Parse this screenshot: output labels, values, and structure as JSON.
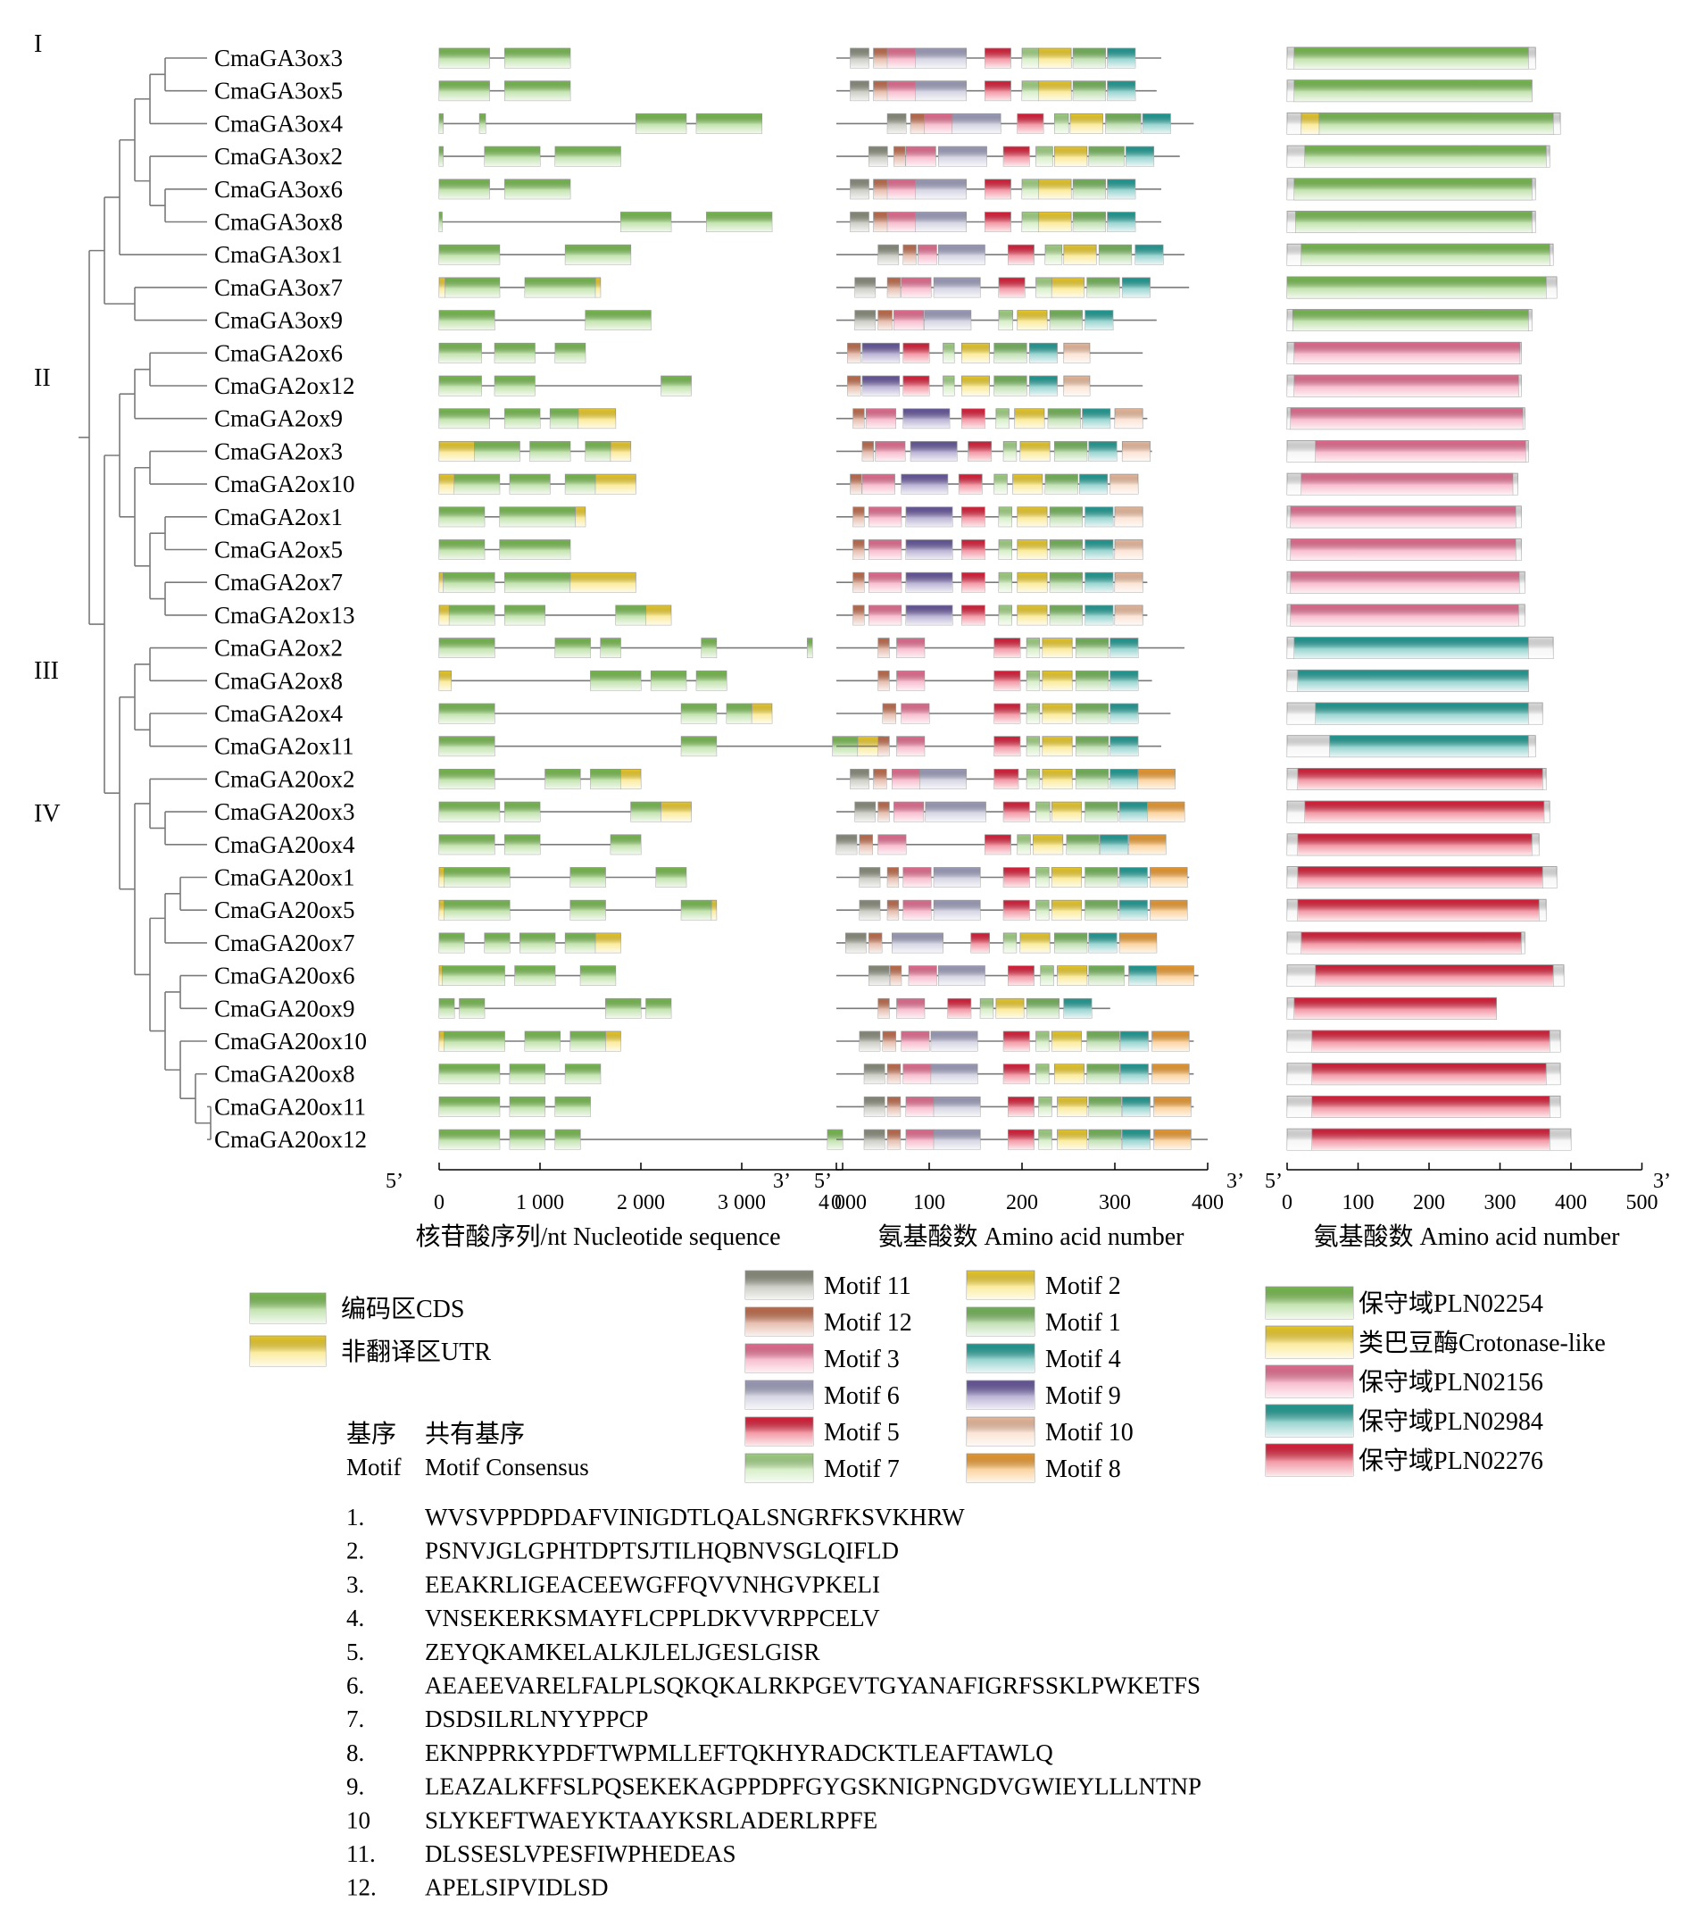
{
  "clade_labels": [
    "I",
    "II",
    "III",
    "IV"
  ],
  "genes": [
    "CmaGA3ox3",
    "CmaGA3ox5",
    "CmaGA3ox4",
    "CmaGA3ox2",
    "CmaGA3ox6",
    "CmaGA3ox8",
    "CmaGA3ox1",
    "CmaGA3ox7",
    "CmaGA3ox9",
    "CmaGA2ox6",
    "CmaGA2ox12",
    "CmaGA2ox9",
    "CmaGA2ox3",
    "CmaGA2ox10",
    "CmaGA2ox1",
    "CmaGA2ox5",
    "CmaGA2ox7",
    "CmaGA2ox13",
    "CmaGA2ox2",
    "CmaGA2ox8",
    "CmaGA2ox4",
    "CmaGA2ox11",
    "CmaGA20ox2",
    "CmaGA20ox3",
    "CmaGA20ox4",
    "CmaGA20ox1",
    "CmaGA20ox5",
    "CmaGA20ox7",
    "CmaGA20ox6",
    "CmaGA20ox9",
    "CmaGA20ox10",
    "CmaGA20ox8",
    "CmaGA20ox11",
    "CmaGA20ox12"
  ],
  "gene_lengths_nt": [
    1300,
    1300,
    3200,
    1800,
    1300,
    3300,
    1900,
    1600,
    2100,
    1450,
    2500,
    1750,
    1900,
    1950,
    1450,
    1300,
    1950,
    2300,
    3700,
    2850,
    3300,
    4400,
    2000,
    2500,
    2000,
    2450,
    2750,
    1800,
    1750,
    2300,
    1800,
    1600,
    1500,
    4000
  ],
  "protein_lengths_aa": [
    350,
    345,
    385,
    370,
    350,
    350,
    375,
    380,
    345,
    330,
    330,
    335,
    340,
    325,
    330,
    330,
    335,
    335,
    375,
    340,
    360,
    350,
    365,
    370,
    355,
    380,
    365,
    335,
    390,
    295,
    385,
    385,
    385,
    400
  ],
  "panel_a": {
    "xlabel": "核苷酸序列/nt Nucleotide sequence",
    "ticks": [
      "0",
      "1 000",
      "2 000",
      "3 000",
      "4 000"
    ],
    "end5": "5’",
    "end3": "3’"
  },
  "panel_b": {
    "xlabel": "氨基酸数 Amino acid number",
    "ticks": [
      "0",
      "100",
      "200",
      "300",
      "400"
    ],
    "end5": "5’",
    "end3": "3’"
  },
  "panel_c": {
    "xlabel": "氨基酸数 Amino acid number",
    "ticks": [
      "0",
      "100",
      "200",
      "300",
      "400",
      "500"
    ],
    "end5": "5’",
    "end3": "3’"
  },
  "legend_gene": [
    {
      "label": "编码区CDS",
      "color": "#7cc352"
    },
    {
      "label": "非翻译区UTR",
      "color": "#f6d42a"
    }
  ],
  "legend_motif": [
    {
      "label": "Motif 11",
      "color": "#8e9280"
    },
    {
      "label": "Motif 12",
      "color": "#c8704e"
    },
    {
      "label": "Motif 3",
      "color": "#ef7197"
    },
    {
      "label": "Motif 6",
      "color": "#a4a4c4"
    },
    {
      "label": "Motif 5",
      "color": "#e3203c"
    },
    {
      "label": "Motif 7",
      "color": "#a8dc88"
    },
    {
      "label": "Motif 2",
      "color": "#f6d42a"
    },
    {
      "label": "Motif 1",
      "color": "#78bc5c"
    },
    {
      "label": "Motif 4",
      "color": "#20a29a"
    },
    {
      "label": "Motif 9",
      "color": "#6a5aa2"
    },
    {
      "label": "Motif 10",
      "color": "#f6c4a4"
    },
    {
      "label": "Motif 8",
      "color": "#f6a030"
    }
  ],
  "legend_domain": [
    {
      "label": "保守域PLN02254",
      "color": "#7cc352"
    },
    {
      "label": "类巴豆酶Crotonase-like",
      "color": "#f6d42a"
    },
    {
      "label": "保守域PLN02156",
      "color": "#ef7197"
    },
    {
      "label": "保守域PLN02984",
      "color": "#20a29a"
    },
    {
      "label": "保守域PLN02276",
      "color": "#e3203c"
    }
  ],
  "motif_table": {
    "header_zh_1": "基序",
    "header_zh_2": "共有基序",
    "header_en_1": "Motif",
    "header_en_2": "Motif Consensus",
    "rows": [
      {
        "num": "1.",
        "seq": "WVSVPPDPDAFVINIGDTLQALSNGRFKSVKHRW"
      },
      {
        "num": "2.",
        "seq": "PSNVJGLGPHTDPTSJTILHQBNVSGLQIFLD"
      },
      {
        "num": "3.",
        "seq": "EEAKRLIGEACEEWGFFQVVNHGVPKELI"
      },
      {
        "num": "4.",
        "seq": "VNSEKERKSMAYFLCPPLDKVVRPPCELV"
      },
      {
        "num": "5.",
        "seq": "ZEYQKAMKELALKJLELJGESLGISR"
      },
      {
        "num": "6.",
        "seq": "AEAEEVARELFALPLSQKQKALRKPGEVTGYANAFIGRFSSKLPWKETFS"
      },
      {
        "num": "7.",
        "seq": "DSDSILRLNYYPPCP"
      },
      {
        "num": "8.",
        "seq": "EKNPPRKYPDFTWPMLLEFTQKHYRADCKTLEAFTAWLQ"
      },
      {
        "num": "9.",
        "seq": "LEAZALKFFSLPQSEKEKAGPPDPFGYGSKNIGPNGDVGWIEYLLLNTNP"
      },
      {
        "num": "10",
        "seq": "SLYKEFTWAEYKTAAYKSRLADERLRPFE"
      },
      {
        "num": "11.",
        "seq": "DLSSESLVPESFIWPHEDEAS"
      },
      {
        "num": "12.",
        "seq": "APELSIPVIDLSD"
      }
    ]
  }
}
